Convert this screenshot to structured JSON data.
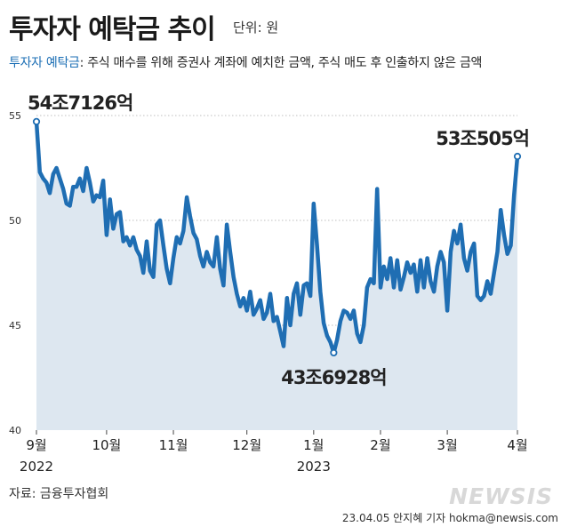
{
  "header": {
    "title": "투자자 예탁금 추이",
    "unit": "단위: 원",
    "definition_term": "투자자 예탁금",
    "definition_text": ": 주식 매수를 위해 증권사 계좌에 예치한 금액, 주식 매도 후 인출하지 않은 금액"
  },
  "footer": {
    "source": "자료: 금융투자협회",
    "credit": "23.04.05 안지혜 기자 hokma@newsis.com",
    "logo": "NEWSIS"
  },
  "colors": {
    "line": "#1f6eb3",
    "area": "#dde7f0",
    "grid": "#bfbfbf"
  },
  "chart_data": {
    "type": "area",
    "title": "투자자 예탁금 추이",
    "xlabel": "",
    "ylabel": "",
    "ylim": [
      40,
      55
    ],
    "yticks": [
      40,
      45,
      50,
      55
    ],
    "grid": true,
    "x_axis": [
      {
        "label": "9월",
        "sublabel": "2022",
        "index": 0
      },
      {
        "label": "10월",
        "sublabel": "",
        "index": 21
      },
      {
        "label": "11월",
        "sublabel": "",
        "index": 41
      },
      {
        "label": "12월",
        "sublabel": "",
        "index": 63
      },
      {
        "label": "1월",
        "sublabel": "2023",
        "index": 83
      },
      {
        "label": "2월",
        "sublabel": "",
        "index": 103
      },
      {
        "label": "3월",
        "sublabel": "",
        "index": 123
      },
      {
        "label": "4월",
        "sublabel": "",
        "index": 144
      }
    ],
    "values": [
      54.71,
      52.3,
      52.0,
      51.8,
      51.3,
      52.2,
      52.5,
      52.0,
      51.5,
      50.8,
      50.7,
      51.6,
      51.6,
      52.0,
      51.4,
      52.5,
      51.8,
      50.9,
      51.2,
      51.1,
      51.9,
      49.3,
      51.0,
      49.6,
      50.3,
      50.4,
      49.0,
      49.2,
      48.8,
      49.2,
      48.6,
      48.3,
      47.5,
      49.0,
      47.6,
      47.3,
      49.8,
      50.0,
      48.8,
      47.7,
      47.0,
      48.2,
      49.2,
      48.9,
      49.5,
      51.1,
      50.2,
      49.4,
      49.1,
      48.3,
      47.8,
      48.5,
      48.0,
      47.8,
      49.2,
      47.7,
      46.9,
      49.8,
      48.5,
      47.3,
      46.5,
      45.9,
      46.3,
      45.7,
      46.6,
      45.5,
      45.8,
      46.2,
      45.3,
      45.6,
      46.5,
      45.2,
      45.4,
      44.7,
      44.0,
      46.3,
      45.0,
      46.5,
      47.0,
      45.5,
      46.9,
      47.0,
      46.4,
      50.8,
      48.8,
      46.6,
      45.1,
      44.5,
      44.2,
      43.69,
      44.3,
      45.2,
      45.7,
      45.6,
      45.3,
      45.7,
      44.6,
      44.2,
      45.0,
      46.8,
      47.2,
      47.0,
      51.5,
      46.8,
      47.8,
      47.2,
      48.2,
      46.8,
      48.1,
      46.7,
      47.3,
      48.0,
      47.5,
      47.9,
      46.6,
      48.1,
      46.8,
      48.2,
      47.1,
      46.6,
      47.8,
      48.5,
      48.0,
      45.7,
      48.5,
      49.5,
      48.9,
      49.8,
      48.2,
      47.6,
      48.5,
      48.9,
      46.4,
      46.2,
      46.4,
      47.1,
      46.5,
      47.5,
      48.5,
      50.5,
      49.3,
      48.4,
      48.8,
      51.2,
      53.05
    ],
    "annotations": [
      {
        "label": "54조7126억",
        "index": 0,
        "value": 54.71
      },
      {
        "label": "43조6928억",
        "index": 89,
        "value": 43.69
      },
      {
        "label": "53조505억",
        "index": 144,
        "value": 53.05
      }
    ]
  }
}
